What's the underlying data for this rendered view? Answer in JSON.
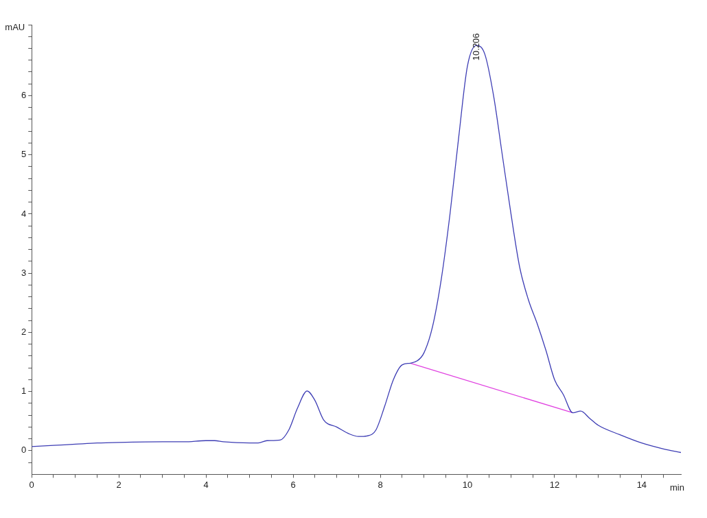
{
  "chart_data": {
    "type": "line",
    "xlabel": "min",
    "ylabel": "mAU",
    "xlim": [
      0,
      14.9
    ],
    "ylim": [
      -0.4,
      7.2
    ],
    "xticks": [
      0,
      {
        "value": 0.5,
        "label": null
      },
      {
        "value": 1,
        "label": null
      },
      {
        "value": 1.5,
        "label": null
      },
      2,
      {
        "value": 2.5,
        "label": null
      },
      {
        "value": 3,
        "label": null
      },
      {
        "value": 3.5,
        "label": null
      },
      4,
      {
        "value": 4.5,
        "label": null
      },
      {
        "value": 5,
        "label": null
      },
      {
        "value": 5.5,
        "label": null
      },
      6,
      {
        "value": 6.5,
        "label": null
      },
      {
        "value": 7,
        "label": null
      },
      {
        "value": 7.5,
        "label": null
      },
      8,
      {
        "value": 8.5,
        "label": null
      },
      {
        "value": 9,
        "label": null
      },
      {
        "value": 9.5,
        "label": null
      },
      10,
      {
        "value": 10.5,
        "label": null
      },
      {
        "value": 11,
        "label": null
      },
      {
        "value": 11.5,
        "label": null
      },
      12,
      {
        "value": 12.5,
        "label": null
      },
      {
        "value": 13,
        "label": null
      },
      {
        "value": 13.5,
        "label": null
      },
      14,
      {
        "value": 14.5,
        "label": null
      }
    ],
    "yticks": [
      {
        "value": -0.2,
        "label": null
      },
      0,
      {
        "value": 0.2,
        "label": null
      },
      {
        "value": 0.4,
        "label": null
      },
      {
        "value": 0.6,
        "label": null
      },
      {
        "value": 0.8,
        "label": null
      },
      1,
      {
        "value": 1.2,
        "label": null
      },
      {
        "value": 1.4,
        "label": null
      },
      {
        "value": 1.6,
        "label": null
      },
      {
        "value": 1.8,
        "label": null
      },
      2,
      {
        "value": 2.2,
        "label": null
      },
      {
        "value": 2.4,
        "label": null
      },
      {
        "value": 2.6,
        "label": null
      },
      {
        "value": 2.8,
        "label": null
      },
      3,
      {
        "value": 3.2,
        "label": null
      },
      {
        "value": 3.4,
        "label": null
      },
      {
        "value": 3.6,
        "label": null
      },
      {
        "value": 3.8,
        "label": null
      },
      4,
      {
        "value": 4.2,
        "label": null
      },
      {
        "value": 4.4,
        "label": null
      },
      {
        "value": 4.6,
        "label": null
      },
      {
        "value": 4.8,
        "label": null
      },
      5,
      {
        "value": 5.2,
        "label": null
      },
      {
        "value": 5.4,
        "label": null
      },
      {
        "value": 5.6,
        "label": null
      },
      {
        "value": 5.8,
        "label": null
      },
      6,
      {
        "value": 6.2,
        "label": null
      },
      {
        "value": 6.4,
        "label": null
      },
      {
        "value": 6.6,
        "label": null
      },
      {
        "value": 6.8,
        "label": null
      },
      {
        "value": 7,
        "label": null
      },
      {
        "value": 7.2,
        "label": null
      }
    ],
    "grid": false,
    "legend": false,
    "marker": "none",
    "line_style": "solid",
    "annotations": [
      {
        "text": "10.206",
        "x": 10.206,
        "y": 6.85
      }
    ],
    "series": [
      {
        "color": "#3c3cb4",
        "x": [
          0,
          0.5,
          1,
          1.5,
          2,
          3,
          3.5,
          4,
          4.2,
          4.4,
          5,
          5.2,
          5.4,
          5.7,
          5.9,
          6.1,
          6.32,
          6.5,
          6.7,
          7,
          7.3,
          7.5,
          7.7,
          7.9,
          8.1,
          8.3,
          8.5,
          8.69,
          8.85,
          9,
          9.2,
          9.4,
          9.6,
          9.8,
          10,
          10.21,
          10.4,
          10.6,
          10.8,
          11,
          11.2,
          11.4,
          11.6,
          11.8,
          12,
          12.2,
          12.42,
          12.6,
          12.8,
          13,
          13.5,
          14,
          14.5,
          14.9
        ],
        "values": [
          0.07,
          0.09,
          0.11,
          0.13,
          0.14,
          0.15,
          0.15,
          0.17,
          0.17,
          0.15,
          0.13,
          0.13,
          0.17,
          0.18,
          0.35,
          0.72,
          1.01,
          0.85,
          0.52,
          0.4,
          0.28,
          0.24,
          0.25,
          0.35,
          0.75,
          1.2,
          1.45,
          1.48,
          1.52,
          1.65,
          2.1,
          2.9,
          4,
          5.3,
          6.5,
          6.85,
          6.7,
          6,
          5,
          4,
          3.1,
          2.55,
          2.15,
          1.7,
          1.2,
          0.95,
          0.64,
          0.67,
          0.55,
          0.43,
          0.27,
          0.13,
          0.03,
          -0.03
        ]
      },
      {
        "color": "#e040e0",
        "x": [
          8.69,
          12.42
        ],
        "values": [
          1.48,
          0.64
        ]
      }
    ]
  }
}
